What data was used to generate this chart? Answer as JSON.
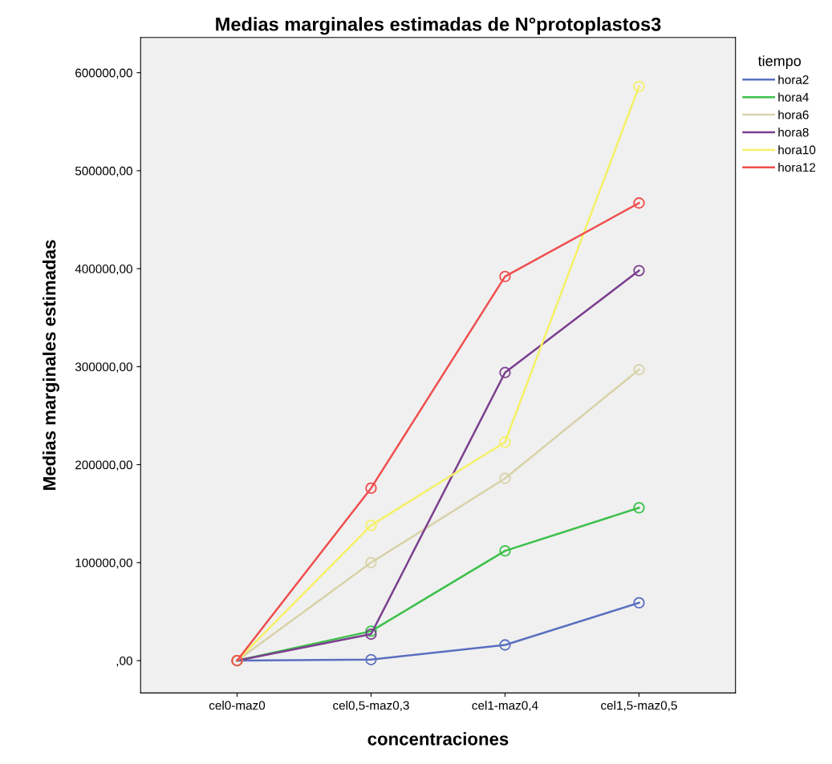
{
  "chart_data": {
    "type": "line",
    "title": "Medias marginales estimadas de N°protoplastos3",
    "xlabel": "concentraciones",
    "ylabel": "Medias marginales estimadas",
    "legend_title": "tiempo",
    "legend": "right",
    "marker": "circle",
    "grid": false,
    "categories": [
      "cel0-maz0",
      "cel0,5-maz0,3",
      "cel1-maz0,4",
      "cel1,5-maz0,5"
    ],
    "ylim": [
      -33000,
      636000
    ],
    "yticks": [
      {
        "value": 0,
        "label": ",00"
      },
      {
        "value": 100000,
        "label": "100000,00"
      },
      {
        "value": 200000,
        "label": "200000,00"
      },
      {
        "value": 300000,
        "label": "300000,00"
      },
      {
        "value": 400000,
        "label": "400000,00"
      },
      {
        "value": 500000,
        "label": "500000,00"
      },
      {
        "value": 600000,
        "label": "600000,00"
      }
    ],
    "series": [
      {
        "name": "hora2",
        "color": "#5a6fc0",
        "values": [
          0,
          1000,
          16000,
          59000
        ]
      },
      {
        "name": "hora4",
        "color": "#3cc04a",
        "values": [
          0,
          30000,
          112000,
          156000
        ]
      },
      {
        "name": "hora6",
        "color": "#d8d2a8",
        "values": [
          0,
          100000,
          186000,
          297000
        ]
      },
      {
        "name": "hora8",
        "color": "#7b3f8f",
        "values": [
          0,
          27000,
          294000,
          398000
        ]
      },
      {
        "name": "hora10",
        "color": "#f5f066",
        "values": [
          0,
          138000,
          223000,
          586000
        ]
      },
      {
        "name": "hora12",
        "color": "#f04e4e",
        "values": [
          0,
          176000,
          392000,
          467000
        ]
      }
    ]
  }
}
